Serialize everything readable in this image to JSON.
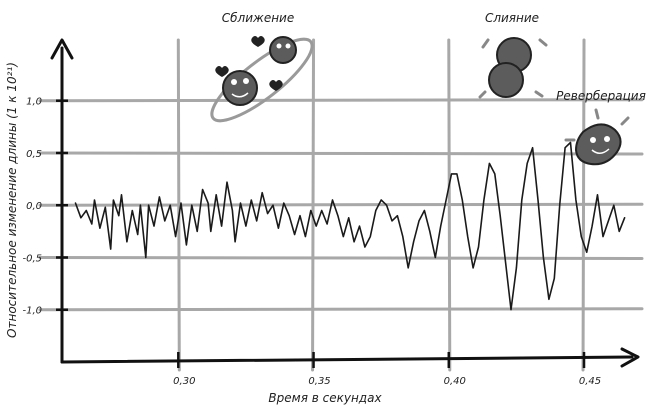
{
  "chart_data": {
    "type": "line",
    "title": "",
    "xlabel": "Время в секундах",
    "ylabel": "Относительное изменение длины (1 к 10²¹)",
    "xlim": [
      0.257,
      0.467
    ],
    "ylim": [
      -1.5,
      1.6
    ],
    "x_ticks": [
      {
        "value": 0.3,
        "label": "0,30"
      },
      {
        "value": 0.35,
        "label": "0,35"
      },
      {
        "value": 0.4,
        "label": "0,40"
      },
      {
        "value": 0.45,
        "label": "0,45"
      }
    ],
    "y_ticks": [
      {
        "value": 1.0,
        "label": "1,0"
      },
      {
        "value": 0.5,
        "label": "0,5"
      },
      {
        "value": 0.0,
        "label": "0,0"
      },
      {
        "value": -0.5,
        "label": "-0,5"
      },
      {
        "value": -1.0,
        "label": "-1,0"
      }
    ],
    "grid": true,
    "series": [
      {
        "values": [
          [
            0.262,
            0.02
          ],
          [
            0.264,
            -0.12
          ],
          [
            0.266,
            -0.05
          ],
          [
            0.268,
            -0.18
          ],
          [
            0.269,
            0.05
          ],
          [
            0.271,
            -0.22
          ],
          [
            0.273,
            -0.02
          ],
          [
            0.275,
            -0.42
          ],
          [
            0.276,
            0.05
          ],
          [
            0.278,
            -0.1
          ],
          [
            0.279,
            0.1
          ],
          [
            0.281,
            -0.35
          ],
          [
            0.283,
            -0.05
          ],
          [
            0.285,
            -0.28
          ],
          [
            0.286,
            0.0
          ],
          [
            0.288,
            -0.5
          ],
          [
            0.289,
            0.0
          ],
          [
            0.291,
            -0.2
          ],
          [
            0.293,
            0.08
          ],
          [
            0.295,
            -0.15
          ],
          [
            0.297,
            0.0
          ],
          [
            0.299,
            -0.3
          ],
          [
            0.301,
            0.02
          ],
          [
            0.303,
            -0.38
          ],
          [
            0.305,
            0.0
          ],
          [
            0.307,
            -0.25
          ],
          [
            0.309,
            0.15
          ],
          [
            0.311,
            0.02
          ],
          [
            0.312,
            -0.25
          ],
          [
            0.314,
            0.1
          ],
          [
            0.316,
            -0.2
          ],
          [
            0.318,
            0.22
          ],
          [
            0.32,
            -0.05
          ],
          [
            0.321,
            -0.35
          ],
          [
            0.323,
            0.02
          ],
          [
            0.325,
            -0.2
          ],
          [
            0.327,
            0.05
          ],
          [
            0.329,
            -0.15
          ],
          [
            0.331,
            0.12
          ],
          [
            0.333,
            -0.08
          ],
          [
            0.335,
            0.0
          ],
          [
            0.337,
            -0.22
          ],
          [
            0.339,
            0.02
          ],
          [
            0.341,
            -0.1
          ],
          [
            0.343,
            -0.28
          ],
          [
            0.345,
            -0.1
          ],
          [
            0.347,
            -0.3
          ],
          [
            0.349,
            -0.05
          ],
          [
            0.351,
            -0.2
          ],
          [
            0.353,
            -0.05
          ],
          [
            0.355,
            -0.18
          ],
          [
            0.357,
            0.05
          ],
          [
            0.359,
            -0.1
          ],
          [
            0.361,
            -0.3
          ],
          [
            0.363,
            -0.12
          ],
          [
            0.365,
            -0.35
          ],
          [
            0.367,
            -0.2
          ],
          [
            0.369,
            -0.4
          ],
          [
            0.371,
            -0.3
          ],
          [
            0.373,
            -0.05
          ],
          [
            0.375,
            0.05
          ],
          [
            0.377,
            0.0
          ],
          [
            0.379,
            -0.15
          ],
          [
            0.381,
            -0.1
          ],
          [
            0.383,
            -0.3
          ],
          [
            0.385,
            -0.6
          ],
          [
            0.387,
            -0.35
          ],
          [
            0.389,
            -0.15
          ],
          [
            0.391,
            -0.05
          ],
          [
            0.393,
            -0.25
          ],
          [
            0.395,
            -0.5
          ],
          [
            0.397,
            -0.2
          ],
          [
            0.399,
            0.05
          ],
          [
            0.401,
            0.3
          ],
          [
            0.403,
            0.3
          ],
          [
            0.405,
            0.05
          ],
          [
            0.407,
            -0.3
          ],
          [
            0.409,
            -0.6
          ],
          [
            0.411,
            -0.4
          ],
          [
            0.413,
            0.05
          ],
          [
            0.415,
            0.4
          ],
          [
            0.417,
            0.3
          ],
          [
            0.419,
            -0.1
          ],
          [
            0.421,
            -0.55
          ],
          [
            0.423,
            -1.0
          ],
          [
            0.425,
            -0.6
          ],
          [
            0.427,
            0.05
          ],
          [
            0.429,
            0.4
          ],
          [
            0.431,
            0.55
          ],
          [
            0.433,
            0.05
          ],
          [
            0.435,
            -0.5
          ],
          [
            0.437,
            -0.9
          ],
          [
            0.439,
            -0.7
          ],
          [
            0.441,
            0.0
          ],
          [
            0.443,
            0.55
          ],
          [
            0.445,
            0.6
          ],
          [
            0.447,
            0.05
          ],
          [
            0.449,
            -0.3
          ],
          [
            0.451,
            -0.45
          ],
          [
            0.453,
            -0.2
          ],
          [
            0.455,
            0.1
          ],
          [
            0.457,
            -0.3
          ],
          [
            0.459,
            -0.15
          ],
          [
            0.461,
            0.0
          ],
          [
            0.463,
            -0.25
          ],
          [
            0.465,
            -0.12
          ]
        ]
      }
    ],
    "annotations": [
      "Сближение",
      "Слияние",
      "Реверберация"
    ]
  }
}
